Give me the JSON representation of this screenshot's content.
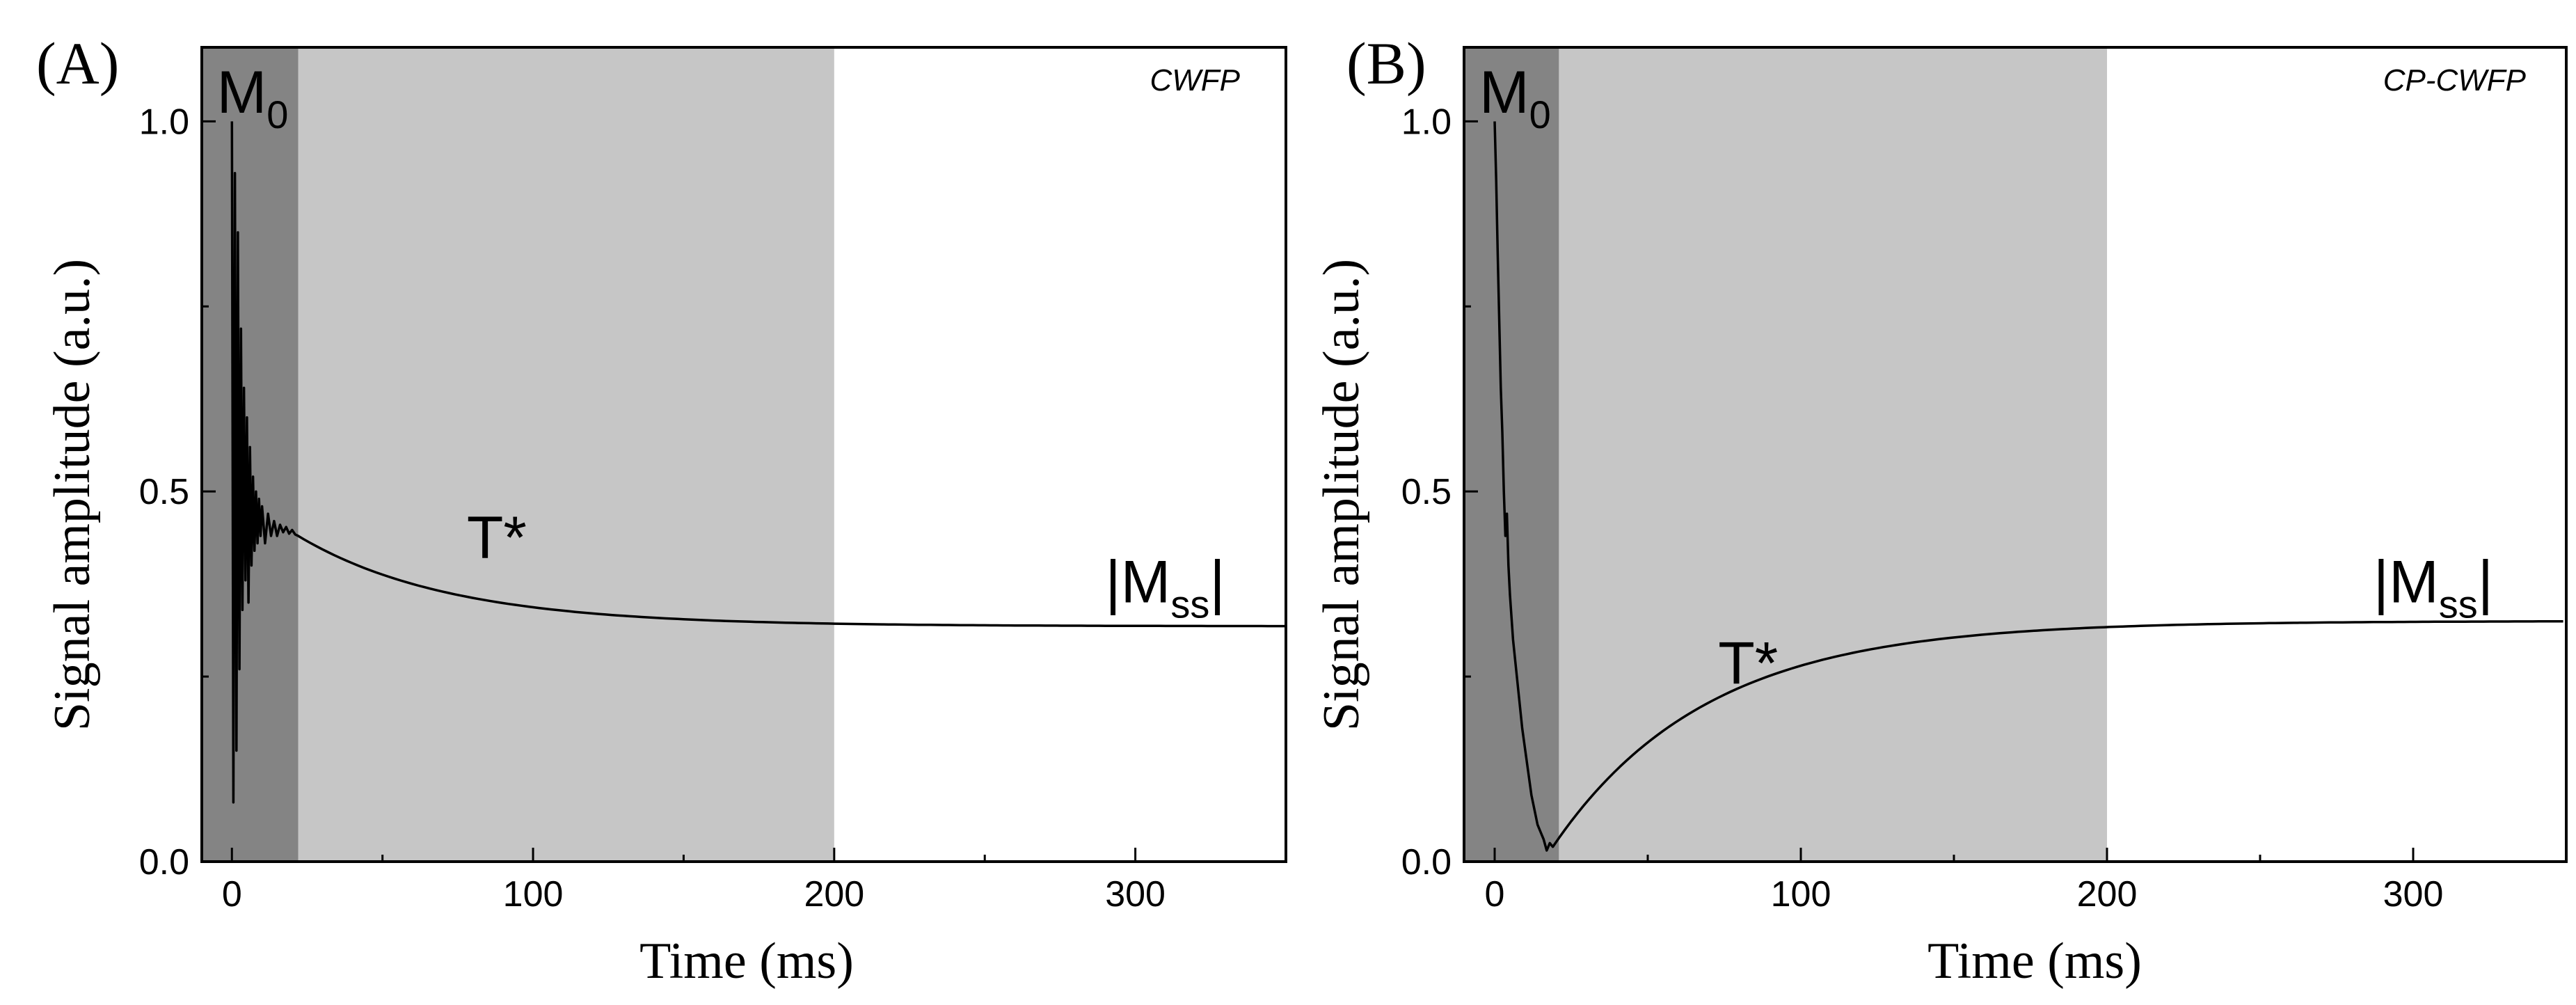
{
  "chart_data": [
    {
      "type": "line",
      "panel_label": "(A)",
      "method": "CWFP",
      "xlabel": "Time (ms)",
      "ylabel": "Signal amplitude (a.u.)",
      "xlim": [
        -10,
        350
      ],
      "ylim": [
        0,
        1.1
      ],
      "xticks": [
        0,
        100,
        200,
        300
      ],
      "yticks": [
        0.0,
        0.5,
        1.0
      ],
      "ytick_labels": [
        "0.0",
        "0.5",
        "1.0"
      ],
      "regions": [
        {
          "name": "M0",
          "x0": -10,
          "x1": 22,
          "color": "#848484"
        },
        {
          "name": "T*",
          "x0": 22,
          "x1": 200,
          "color": "#c6c6c6"
        },
        {
          "name": "|Mss|",
          "x0": 200,
          "x1": 350,
          "color": "#ffffff"
        }
      ],
      "annotations": {
        "m0": {
          "main": "M",
          "sub": "0",
          "x": -5,
          "y": 1.04
        },
        "tstar": {
          "text": "T*",
          "x": 78,
          "y": 0.41
        },
        "mss": {
          "left": "|M",
          "sub": "ss",
          "right": "|",
          "x": 290,
          "y": 0.35
        }
      },
      "series": [
        {
          "name": "CWFP signal",
          "decay": {
            "start_x": 22,
            "start_y": 0.44,
            "tau": 50,
            "steady_state": 0.318
          },
          "oscillation": {
            "x": [
              0,
              0.5,
              1,
              1.5,
              2,
              2.5,
              3,
              3.5,
              4,
              4.5,
              5,
              5.5,
              6,
              6.5,
              7,
              7.5,
              8,
              8.5,
              9,
              9.5,
              10,
              11,
              12,
              13,
              14,
              15,
              16,
              17,
              18,
              19,
              20,
              21,
              22
            ],
            "y": [
              1.0,
              0.08,
              0.93,
              0.15,
              0.85,
              0.26,
              0.72,
              0.34,
              0.64,
              0.38,
              0.6,
              0.35,
              0.56,
              0.4,
              0.52,
              0.42,
              0.5,
              0.43,
              0.49,
              0.44,
              0.48,
              0.43,
              0.47,
              0.44,
              0.46,
              0.44,
              0.455,
              0.445,
              0.452,
              0.443,
              0.448,
              0.442,
              0.44
            ]
          }
        }
      ]
    },
    {
      "type": "line",
      "panel_label": "(B)",
      "method": "CP-CWFP",
      "xlabel": "Time (ms)",
      "ylabel": "Signal amplitude (a.u.)",
      "xlim": [
        -10,
        350
      ],
      "ylim": [
        0,
        1.1
      ],
      "xticks": [
        0,
        100,
        200,
        300
      ],
      "yticks": [
        0.0,
        0.5,
        1.0
      ],
      "ytick_labels": [
        "0.0",
        "0.5",
        "1.0"
      ],
      "regions": [
        {
          "name": "M0",
          "x0": -10,
          "x1": 21,
          "color": "#848484"
        },
        {
          "name": "T*",
          "x0": 21,
          "x1": 200,
          "color": "#c6c6c6"
        },
        {
          "name": "|Mss|",
          "x0": 200,
          "x1": 350,
          "color": "#ffffff"
        }
      ],
      "annotations": {
        "m0": {
          "main": "M",
          "sub": "0",
          "x": -5,
          "y": 1.04
        },
        "tstar": {
          "text": "T*",
          "x": 73,
          "y": 0.24
        },
        "mss": {
          "left": "|M",
          "sub": "ss",
          "right": "|",
          "x": 287,
          "y": 0.35
        }
      },
      "series": [
        {
          "name": "CP-CWFP signal",
          "decay": {
            "start_x": 19,
            "start_y": 0.02,
            "tau": 50,
            "steady_state": 0.325
          },
          "oscillation": {
            "x": [
              0,
              0.5,
              1,
              1.5,
              2,
              2.5,
              3,
              3.5,
              4,
              4.5,
              5,
              6,
              7,
              8,
              9,
              10,
              11,
              12,
              13,
              14,
              15,
              16,
              17,
              18,
              19
            ],
            "y": [
              1.0,
              0.92,
              0.82,
              0.73,
              0.64,
              0.58,
              0.5,
              0.44,
              0.47,
              0.4,
              0.36,
              0.3,
              0.26,
              0.22,
              0.18,
              0.15,
              0.12,
              0.09,
              0.07,
              0.05,
              0.04,
              0.03,
              0.015,
              0.025,
              0.02
            ]
          }
        }
      ]
    }
  ]
}
